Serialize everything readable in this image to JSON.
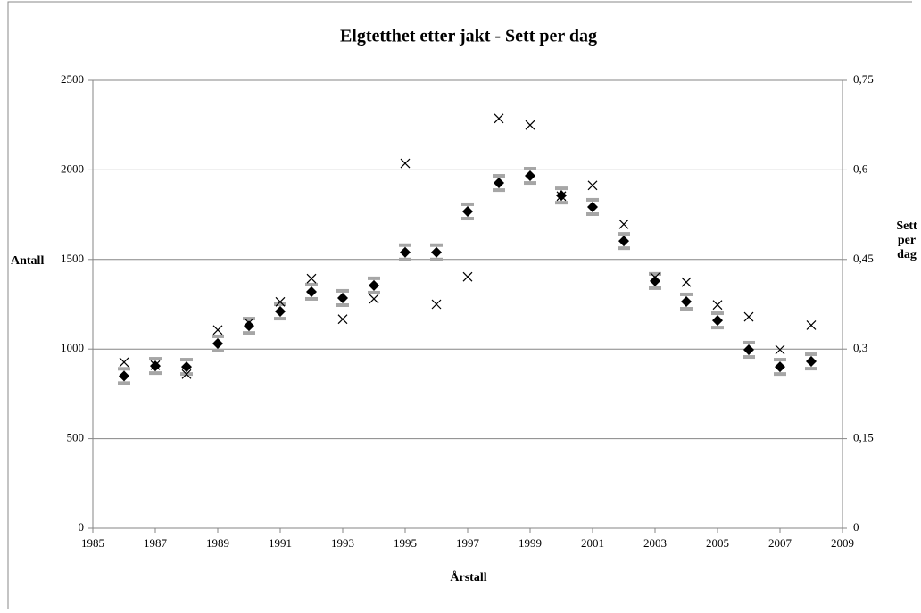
{
  "chart_data": {
    "type": "scatter",
    "title": "Elgtetthet etter jakt - Sett per dag",
    "x_label": "Årstall",
    "y_label": "Antall",
    "y2_label": "Sett per dag",
    "xlim": [
      1985,
      2009
    ],
    "xticks": [
      1985,
      1987,
      1989,
      1991,
      1993,
      1995,
      1997,
      1999,
      2001,
      2003,
      2005,
      2007,
      2009
    ],
    "ylim": [
      0,
      2500
    ],
    "yticks": [
      0,
      500,
      1000,
      1500,
      2000,
      2500
    ],
    "y2lim": [
      0,
      0.75
    ],
    "y2ticks": [
      0,
      {
        "value": 0.15,
        "label": "0,15"
      },
      {
        "value": 0.3,
        "label": "0,3"
      },
      {
        "value": 0.45,
        "label": "0,45"
      },
      {
        "value": 0.6,
        "label": "0,6"
      },
      {
        "value": 0.75,
        "label": "0,75"
      }
    ],
    "grid": true,
    "series": [
      {
        "marker": "diamond",
        "color": "#000000",
        "error_color": "#a6a6a6",
        "x": [
          1986,
          1987,
          1988,
          1989,
          1990,
          1991,
          1992,
          1993,
          1994,
          1995,
          1996,
          1997,
          1998,
          1999,
          2000,
          2001,
          2002,
          2003,
          2004,
          2005,
          2006,
          2007,
          2008
        ],
        "values": [
          850,
          906,
          901,
          1031,
          1130,
          1210,
          1320,
          1285,
          1355,
          1540,
          1540,
          1768,
          1927,
          1967,
          1857,
          1793,
          1603,
          1380,
          1265,
          1160,
          996,
          901,
          931
        ],
        "errors": [
          40,
          40,
          40,
          40,
          40,
          40,
          40,
          40,
          40,
          40,
          40,
          40,
          40,
          40,
          40,
          40,
          40,
          40,
          40,
          40,
          40,
          40,
          40
        ]
      },
      {
        "marker": "x",
        "color": "#000000",
        "axis": "y2",
        "x": [
          1986,
          1987,
          1988,
          1989,
          1990,
          1991,
          1992,
          1993,
          1994,
          1995,
          1996,
          1997,
          1998,
          1999,
          2000,
          2001,
          2002,
          2003,
          2004,
          2005,
          2006,
          2007,
          2008
        ],
        "values": [
          0.278,
          0.273,
          0.258,
          0.332,
          0.344,
          0.379,
          0.418,
          0.35,
          0.384,
          0.611,
          0.375,
          0.421,
          0.686,
          0.675,
          0.556,
          0.574,
          0.509,
          0.42,
          0.412,
          0.374,
          0.354,
          0.299,
          0.34
        ]
      }
    ]
  }
}
